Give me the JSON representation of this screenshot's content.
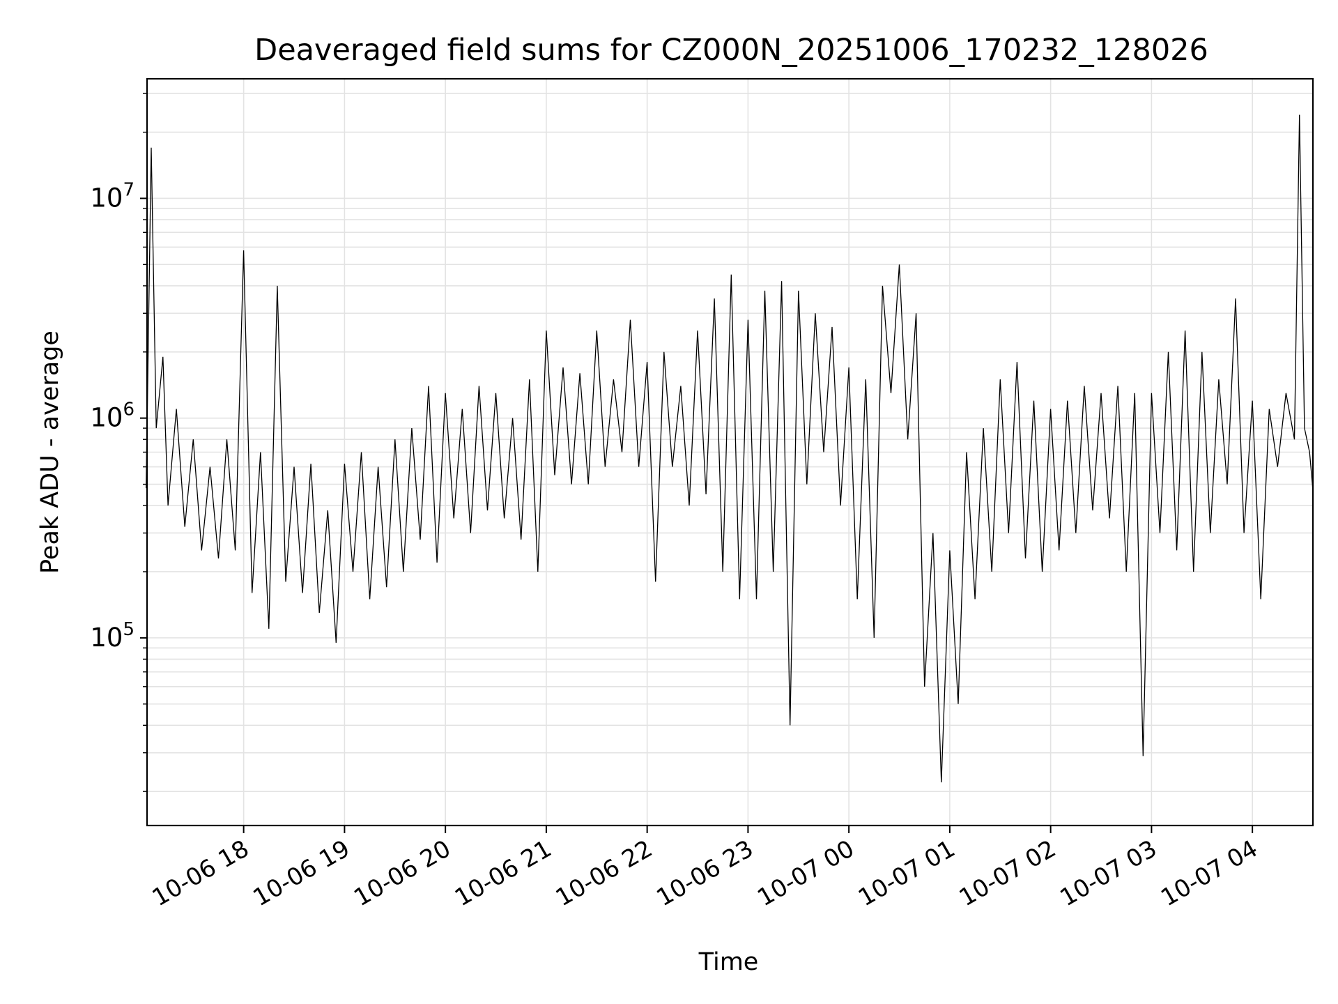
{
  "chart_data": {
    "type": "line",
    "title": "Deaveraged field sums for CZ000N_20251006_170232_128026",
    "xlabel": "Time",
    "ylabel": "Peak ADU - average",
    "yscale": "log",
    "ylim": [
      14000,
      35000000
    ],
    "xlim": [
      "2025-10-06T17:02:32",
      "2025-10-07T04:36:00"
    ],
    "grid": true,
    "x_ticks": [
      "10-06 18",
      "10-06 19",
      "10-06 20",
      "10-06 21",
      "10-06 22",
      "10-06 23",
      "10-07 00",
      "10-07 01",
      "10-07 02",
      "10-07 03",
      "10-07 04"
    ],
    "y_ticks": [
      {
        "base": "10",
        "exp": "5",
        "value": 100000
      },
      {
        "base": "10",
        "exp": "6",
        "value": 1000000
      },
      {
        "base": "10",
        "exp": "7",
        "value": 10000000
      }
    ],
    "series": [
      {
        "color": "#000000",
        "points": [
          [
            "2025-10-06T17:02",
            480000
          ],
          [
            "2025-10-06T17:05",
            17000000
          ],
          [
            "2025-10-06T17:08",
            900000
          ],
          [
            "2025-10-06T17:12",
            1900000
          ],
          [
            "2025-10-06T17:15",
            400000
          ],
          [
            "2025-10-06T17:20",
            1100000
          ],
          [
            "2025-10-06T17:25",
            320000
          ],
          [
            "2025-10-06T17:30",
            800000
          ],
          [
            "2025-10-06T17:35",
            250000
          ],
          [
            "2025-10-06T17:40",
            600000
          ],
          [
            "2025-10-06T17:45",
            230000
          ],
          [
            "2025-10-06T17:50",
            800000
          ],
          [
            "2025-10-06T17:55",
            250000
          ],
          [
            "2025-10-06T18:00",
            5800000
          ],
          [
            "2025-10-06T18:05",
            160000
          ],
          [
            "2025-10-06T18:10",
            700000
          ],
          [
            "2025-10-06T18:15",
            110000
          ],
          [
            "2025-10-06T18:20",
            4000000
          ],
          [
            "2025-10-06T18:25",
            180000
          ],
          [
            "2025-10-06T18:30",
            600000
          ],
          [
            "2025-10-06T18:35",
            160000
          ],
          [
            "2025-10-06T18:40",
            620000
          ],
          [
            "2025-10-06T18:45",
            130000
          ],
          [
            "2025-10-06T18:50",
            380000
          ],
          [
            "2025-10-06T18:55",
            95000
          ],
          [
            "2025-10-06T19:00",
            620000
          ],
          [
            "2025-10-06T19:05",
            200000
          ],
          [
            "2025-10-06T19:10",
            700000
          ],
          [
            "2025-10-06T19:15",
            150000
          ],
          [
            "2025-10-06T19:20",
            600000
          ],
          [
            "2025-10-06T19:25",
            170000
          ],
          [
            "2025-10-06T19:30",
            800000
          ],
          [
            "2025-10-06T19:35",
            200000
          ],
          [
            "2025-10-06T19:40",
            900000
          ],
          [
            "2025-10-06T19:45",
            280000
          ],
          [
            "2025-10-06T19:50",
            1400000
          ],
          [
            "2025-10-06T19:55",
            220000
          ],
          [
            "2025-10-06T20:00",
            1300000
          ],
          [
            "2025-10-06T20:05",
            350000
          ],
          [
            "2025-10-06T20:10",
            1100000
          ],
          [
            "2025-10-06T20:15",
            300000
          ],
          [
            "2025-10-06T20:20",
            1400000
          ],
          [
            "2025-10-06T20:25",
            380000
          ],
          [
            "2025-10-06T20:30",
            1300000
          ],
          [
            "2025-10-06T20:35",
            350000
          ],
          [
            "2025-10-06T20:40",
            1000000
          ],
          [
            "2025-10-06T20:45",
            280000
          ],
          [
            "2025-10-06T20:50",
            1500000
          ],
          [
            "2025-10-06T20:55",
            200000
          ],
          [
            "2025-10-06T21:00",
            2500000
          ],
          [
            "2025-10-06T21:05",
            550000
          ],
          [
            "2025-10-06T21:10",
            1700000
          ],
          [
            "2025-10-06T21:15",
            500000
          ],
          [
            "2025-10-06T21:20",
            1600000
          ],
          [
            "2025-10-06T21:25",
            500000
          ],
          [
            "2025-10-06T21:30",
            2500000
          ],
          [
            "2025-10-06T21:35",
            600000
          ],
          [
            "2025-10-06T21:40",
            1500000
          ],
          [
            "2025-10-06T21:45",
            700000
          ],
          [
            "2025-10-06T21:50",
            2800000
          ],
          [
            "2025-10-06T21:55",
            600000
          ],
          [
            "2025-10-06T22:00",
            1800000
          ],
          [
            "2025-10-06T22:05",
            180000
          ],
          [
            "2025-10-06T22:10",
            2000000
          ],
          [
            "2025-10-06T22:15",
            600000
          ],
          [
            "2025-10-06T22:20",
            1400000
          ],
          [
            "2025-10-06T22:25",
            400000
          ],
          [
            "2025-10-06T22:30",
            2500000
          ],
          [
            "2025-10-06T22:35",
            450000
          ],
          [
            "2025-10-06T22:40",
            3500000
          ],
          [
            "2025-10-06T22:45",
            200000
          ],
          [
            "2025-10-06T22:50",
            4500000
          ],
          [
            "2025-10-06T22:55",
            150000
          ],
          [
            "2025-10-06T23:00",
            2800000
          ],
          [
            "2025-10-06T23:05",
            150000
          ],
          [
            "2025-10-06T23:10",
            3800000
          ],
          [
            "2025-10-06T23:15",
            200000
          ],
          [
            "2025-10-06T23:20",
            4200000
          ],
          [
            "2025-10-06T23:25",
            40000
          ],
          [
            "2025-10-06T23:30",
            3800000
          ],
          [
            "2025-10-06T23:35",
            500000
          ],
          [
            "2025-10-06T23:40",
            3000000
          ],
          [
            "2025-10-06T23:45",
            700000
          ],
          [
            "2025-10-06T23:50",
            2600000
          ],
          [
            "2025-10-06T23:55",
            400000
          ],
          [
            "2025-10-07T00:00",
            1700000
          ],
          [
            "2025-10-07T00:05",
            150000
          ],
          [
            "2025-10-07T00:10",
            1500000
          ],
          [
            "2025-10-07T00:15",
            100000
          ],
          [
            "2025-10-07T00:20",
            4000000
          ],
          [
            "2025-10-07T00:25",
            1300000
          ],
          [
            "2025-10-07T00:30",
            5000000
          ],
          [
            "2025-10-07T00:35",
            800000
          ],
          [
            "2025-10-07T00:40",
            3000000
          ],
          [
            "2025-10-07T00:45",
            60000
          ],
          [
            "2025-10-07T00:50",
            300000
          ],
          [
            "2025-10-07T00:55",
            22000
          ],
          [
            "2025-10-07T01:00",
            250000
          ],
          [
            "2025-10-07T01:05",
            50000
          ],
          [
            "2025-10-07T01:10",
            700000
          ],
          [
            "2025-10-07T01:15",
            150000
          ],
          [
            "2025-10-07T01:20",
            900000
          ],
          [
            "2025-10-07T01:25",
            200000
          ],
          [
            "2025-10-07T01:30",
            1500000
          ],
          [
            "2025-10-07T01:35",
            300000
          ],
          [
            "2025-10-07T01:40",
            1800000
          ],
          [
            "2025-10-07T01:45",
            230000
          ],
          [
            "2025-10-07T01:50",
            1200000
          ],
          [
            "2025-10-07T01:55",
            200000
          ],
          [
            "2025-10-07T02:00",
            1100000
          ],
          [
            "2025-10-07T02:05",
            250000
          ],
          [
            "2025-10-07T02:10",
            1200000
          ],
          [
            "2025-10-07T02:15",
            300000
          ],
          [
            "2025-10-07T02:20",
            1400000
          ],
          [
            "2025-10-07T02:25",
            380000
          ],
          [
            "2025-10-07T02:30",
            1300000
          ],
          [
            "2025-10-07T02:35",
            350000
          ],
          [
            "2025-10-07T02:40",
            1400000
          ],
          [
            "2025-10-07T02:45",
            200000
          ],
          [
            "2025-10-07T02:50",
            1300000
          ],
          [
            "2025-10-07T02:55",
            29000
          ],
          [
            "2025-10-07T03:00",
            1300000
          ],
          [
            "2025-10-07T03:05",
            300000
          ],
          [
            "2025-10-07T03:10",
            2000000
          ],
          [
            "2025-10-07T03:15",
            250000
          ],
          [
            "2025-10-07T03:20",
            2500000
          ],
          [
            "2025-10-07T03:25",
            200000
          ],
          [
            "2025-10-07T03:30",
            2000000
          ],
          [
            "2025-10-07T03:35",
            300000
          ],
          [
            "2025-10-07T03:40",
            1500000
          ],
          [
            "2025-10-07T03:45",
            500000
          ],
          [
            "2025-10-07T03:50",
            3500000
          ],
          [
            "2025-10-07T03:55",
            300000
          ],
          [
            "2025-10-07T04:00",
            1200000
          ],
          [
            "2025-10-07T04:05",
            150000
          ],
          [
            "2025-10-07T04:10",
            1100000
          ],
          [
            "2025-10-07T04:15",
            600000
          ],
          [
            "2025-10-07T04:20",
            1300000
          ],
          [
            "2025-10-07T04:25",
            800000
          ],
          [
            "2025-10-07T04:28",
            24000000
          ],
          [
            "2025-10-07T04:31",
            900000
          ],
          [
            "2025-10-07T04:34",
            700000
          ],
          [
            "2025-10-07T04:36",
            470000
          ]
        ]
      }
    ]
  }
}
